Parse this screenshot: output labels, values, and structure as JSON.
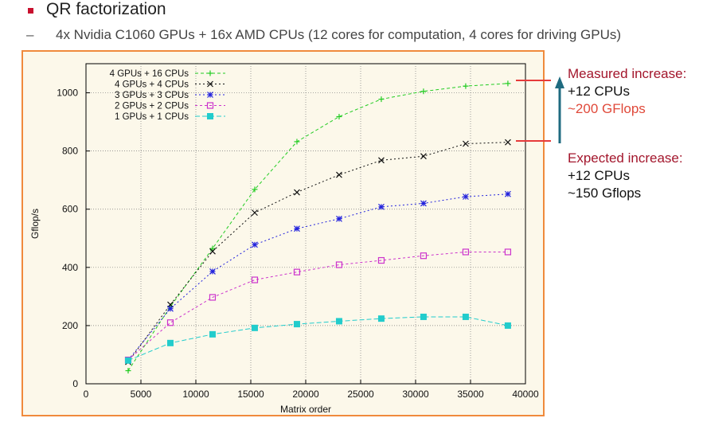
{
  "header": {
    "title": "QR factorization",
    "dash": "–",
    "subtitle": "4x Nvidia C1060 GPUs  +  16x AMD CPUs (12 cores for computation, 4 cores for driving GPUs)"
  },
  "annotations": {
    "measured_title": "Measured increase:",
    "measured_cpus": "+12 CPUs",
    "measured_gflops": "~200 GFlops",
    "expected_title": "Expected increase:",
    "expected_cpus": "+12 CPUs",
    "expected_gflops": "~150 Gflops"
  },
  "colors": {
    "frame": "#f08a3c",
    "plot_bg": "#fcf8ea",
    "arrow": "#1f6b80",
    "marker_line": "#e63b3b",
    "bullet": "#c8102e"
  },
  "chart_data": {
    "type": "line",
    "xlabel": "Matrix order",
    "ylabel": "Gflop/s",
    "xlim": [
      0,
      40000
    ],
    "ylim": [
      0,
      1100
    ],
    "xticks": [
      0,
      5000,
      10000,
      15000,
      20000,
      25000,
      30000,
      35000,
      40000
    ],
    "yticks": [
      0,
      200,
      400,
      600,
      800,
      1000
    ],
    "grid": true,
    "legend_position": "top-left",
    "series": [
      {
        "name": "4 GPUs + 16 CPUs",
        "color": "#22cc22",
        "marker": "plus",
        "dash": "4,3",
        "x": [
          3840,
          7680,
          11520,
          15360,
          19200,
          23040,
          26880,
          30720,
          34560,
          38400
        ],
        "y": [
          45,
          265,
          465,
          668,
          832,
          918,
          978,
          1005,
          1023,
          1032
        ]
      },
      {
        "name": "4 GPUs + 4 CPUs",
        "color": "#111111",
        "marker": "cross",
        "dash": "2,3",
        "x": [
          3840,
          7680,
          11520,
          15360,
          19200,
          23040,
          26880,
          30720,
          34560,
          38400
        ],
        "y": [
          75,
          272,
          455,
          588,
          658,
          718,
          768,
          782,
          825,
          830
        ]
      },
      {
        "name": "3 GPUs + 3 CPUs",
        "color": "#2222dd",
        "marker": "star",
        "dash": "2,3",
        "x": [
          3840,
          7680,
          11520,
          15360,
          19200,
          23040,
          26880,
          30720,
          34560,
          38400
        ],
        "y": [
          82,
          258,
          386,
          478,
          533,
          567,
          608,
          620,
          643,
          652
        ]
      },
      {
        "name": "2 GPUs + 2 CPUs",
        "color": "#cc33cc",
        "marker": "box",
        "dash": "3,3",
        "x": [
          3840,
          7680,
          11520,
          15360,
          19200,
          23040,
          26880,
          30720,
          34560,
          38400
        ],
        "y": [
          82,
          210,
          297,
          357,
          384,
          409,
          424,
          440,
          453,
          453
        ]
      },
      {
        "name": "1 GPUs + 1 CPUs",
        "color": "#22cccc",
        "marker": "filledbox",
        "dash": "6,3",
        "x": [
          3840,
          7680,
          11520,
          15360,
          19200,
          23040,
          26880,
          30720,
          34560,
          38400
        ],
        "y": [
          80,
          140,
          170,
          192,
          205,
          215,
          224,
          230,
          230,
          200
        ]
      }
    ]
  }
}
